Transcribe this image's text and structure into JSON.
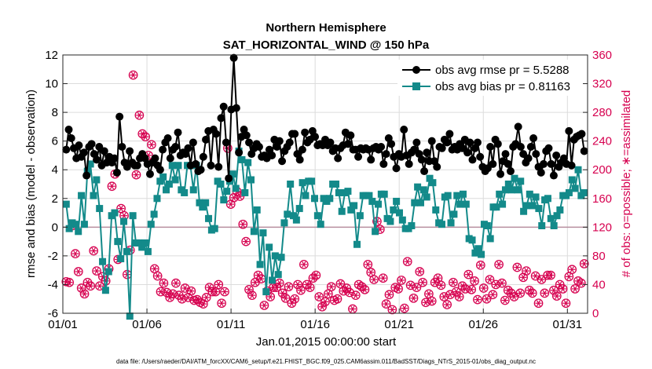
{
  "chart_data": {
    "type": "line",
    "title": "Northern Hemisphere",
    "subtitle": "SAT_HORIZONTAL_WIND @ 150 hPa",
    "xlabel": "Jan.01,2015 00:00:00 start",
    "ylabel": "rmse and bias (model - observation)",
    "ylabel_right": "# of obs: o=possible; ∗=assimilated",
    "footnote": "data file: /Users/raeder/DAI/ATM_forcXX/CAM6_setup/f.e21.FHIST_BGC.f09_025.CAM6assim.011/BadSST/Diags_NTrS_2015-01/obs_diag_output.nc",
    "xlim": [
      1,
      32.2
    ],
    "ylim": [
      -6,
      12
    ],
    "ylim_right": [
      0,
      360
    ],
    "x_ticks": [
      1,
      6,
      11,
      16,
      21,
      26,
      31
    ],
    "x_tick_labels": [
      "01/01",
      "01/06",
      "01/11",
      "01/16",
      "01/21",
      "01/26",
      "01/31"
    ],
    "y_ticks": [
      -6,
      -4,
      -2,
      0,
      2,
      4,
      6,
      8,
      10,
      12
    ],
    "y_tick_labels": [
      "-6",
      "-4",
      "-2",
      "0",
      "2",
      "4",
      "6",
      "8",
      "10",
      "12"
    ],
    "y_ticks_right": [
      0,
      40,
      80,
      120,
      160,
      200,
      240,
      280,
      320,
      360
    ],
    "y_tick_labels_right": [
      "0",
      "40",
      "80",
      "120",
      "160",
      "200",
      "240",
      "280",
      "320",
      "360"
    ],
    "zero_line": 0,
    "legend_position": "top-right",
    "colors": {
      "rmse": "#000000",
      "bias": "#138a8a",
      "obs": "#d6004f",
      "zero": "#b88f9f"
    },
    "series": [
      {
        "name": "obs avg rmse pr = 5.5288",
        "style": "rmse",
        "values": [
          5.4,
          6.8,
          6.2,
          5.5,
          4.8,
          5.7,
          4.9,
          5.2,
          3.6,
          5.6,
          5.8,
          5.1,
          4.7,
          5.6,
          4.3,
          5.3,
          4.5,
          4.9,
          4.5,
          4.8,
          3.8,
          7.7,
          5.6,
          4.5,
          4.2,
          5.3,
          4.5,
          4.3,
          4.3,
          4.8,
          5.1,
          4.8,
          4.4,
          3.7,
          4.5,
          4.8,
          4.3,
          4.0,
          5.4,
          5.9,
          6.2,
          4.8,
          5.4,
          5.6,
          6.6,
          5.0,
          5.2,
          5.1,
          5.5,
          4.3,
          5.9,
          4.4,
          3.9,
          4.0,
          4.9,
          6.1,
          6.7,
          4.3,
          6.8,
          6.5,
          4.2,
          7.6,
          8.4,
          5.9,
          3.4,
          8.2,
          11.8,
          8.3,
          5.2,
          6.3,
          6.8,
          6.4,
          5.9,
          5.1,
          5.5,
          5.8,
          5.6,
          4.9,
          5.0,
          4.8,
          5.4,
          5.0,
          6.1,
          5.6,
          6.0,
          4.6,
          5.3,
          5.6,
          5.9,
          6.5,
          6.5,
          5.1,
          4.7,
          5.4,
          6.6,
          5.9,
          6.1,
          6.7,
          6.3,
          5.7,
          5.8,
          5.7,
          6.1,
          5.7,
          5.9,
          5.3,
          5.5,
          4.8,
          5.5,
          5.7,
          6.6,
          5.8,
          6.4,
          5.4,
          5.4,
          4.9,
          5.5,
          5.4,
          5.5,
          5.4,
          4.7,
          5.5,
          5.6,
          5.4,
          5.6,
          4.4,
          5.1,
          6.2,
          5.8,
          4.9,
          4.1,
          5.1,
          4.9,
          6.8,
          5.0,
          4.4,
          5.2,
          5.4,
          5.9,
          5.1,
          4.7,
          3.9,
          5.2,
          4.6,
          6.0,
          4.6,
          4.2,
          5.6,
          5.5,
          6.1,
          5.9,
          6.5,
          5.4,
          5.6,
          5.4,
          5.8,
          5.5,
          6.1,
          5.2,
          5.9,
          4.7,
          5.5,
          5.9,
          4.9,
          4.2,
          3.9,
          4.1,
          5.6,
          4.4,
          6.1,
          5.8,
          3.7,
          4.6,
          5.1,
          4.4,
          3.9,
          5.6,
          5.8,
          7.0,
          5.6,
          5.1,
          4.5,
          4.8,
          5.6,
          6.2,
          5.1,
          4.2,
          3.8,
          4.4,
          5.3,
          5.5,
          4.4,
          3.6,
          5.0,
          4.2,
          4.5,
          4.8,
          4.4,
          6.7,
          4.3,
          6.1,
          6.3,
          6.4,
          6.5,
          5.3
        ],
        "marker": "filled-circle"
      },
      {
        "name": "obs avg bias pr = 0.81163",
        "style": "bias",
        "values": [
          1.6,
          -0.1,
          0.3,
          0.2,
          -0.3,
          2.2,
          0.2,
          3.9,
          4.4,
          2.2,
          3.3,
          1.3,
          -2.4,
          -4.4,
          -3.1,
          0.8,
          1.0,
          -1.0,
          -2.2,
          0.4,
          -1.7,
          -6.2,
          0.8,
          -1.1,
          -1.1,
          -1.4,
          -1.1,
          -1.7,
          0.2,
          0.9,
          2.0,
          3.2,
          3.5,
          2.6,
          3.0,
          4.3,
          3.3,
          4.3,
          2.6,
          2.4,
          4.3,
          4.3,
          2.6,
          4.3,
          1.7,
          1.4,
          1.7,
          0.6,
          -0.2,
          -0.1,
          3.2,
          3.0,
          1.9,
          2.5,
          3.2,
          3.7,
          2.7,
          5.3,
          4.7,
          2.4,
          4.5,
          3.3,
          -0.3,
          1.2,
          -2.6,
          -0.4,
          -4.5,
          -1.4,
          -3.7,
          -2.0,
          -3.3,
          -2.1,
          0.3,
          0.9,
          3.0,
          0.8,
          0.5,
          1.3,
          3.1,
          2.2,
          3.2,
          3.2,
          2.0,
          0.8,
          0.2,
          2.0,
          1.8,
          2.0,
          3.0,
          3.0,
          2.4,
          1.1,
          2.4,
          2.5,
          1.2,
          1.5,
          -1.2,
          0.8,
          2.2,
          2.2,
          2.2,
          1.8,
          -0.3,
          1.6,
          2.3,
          2.3,
          0.6,
          0.4,
          1.2,
          1.8,
          1.0,
          0.5,
          -0.1,
          -0.1,
          0.1,
          1.7,
          2.8,
          1.7,
          2.6,
          2.1,
          3.4,
          3.1,
          1.2,
          0.3,
          0.2,
          2.1,
          2.2,
          0.3,
          0.9,
          2.2,
          1.6,
          2.3,
          1.6,
          -0.8,
          -0.9,
          -1.8,
          -1.5,
          -1.9,
          0.2,
          0.1,
          -0.8,
          1.4,
          1.4,
          2.3,
          1.6,
          2.6,
          3.0,
          2.6,
          3.4,
          2.6,
          3.2,
          1.1,
          1.5,
          2.3,
          1.5,
          2.1,
          1.3,
          0.1,
          1.9,
          2.0,
          0.6,
          0.1,
          0.8,
          1.2,
          2.2,
          2.2,
          2.4,
          3.3,
          2.7,
          4.0,
          2.2,
          2.4
        ],
        "marker": "filled-square"
      },
      {
        "name": "# of obs possible",
        "style": "obs",
        "axis": "right",
        "values": [
          44,
          43,
          122,
          83,
          58,
          35,
          27,
          43,
          38,
          87,
          59,
          38,
          51,
          45,
          62,
          177,
          194,
          75,
          146,
          136,
          54,
          88,
          332,
          193,
          276,
          250,
          246,
          220,
          235,
          62,
          52,
          30,
          42,
          29,
          22,
          27,
          42,
          25,
          20,
          35,
          22,
          31,
          18,
          19,
          15,
          13,
          22,
          36,
          30,
          30,
          40,
          14,
          30,
          230,
          152,
          161,
          170,
          163,
          124,
          100,
          33,
          25,
          43,
          53,
          48,
          11,
          31,
          23,
          36,
          36,
          42,
          28,
          21,
          37,
          14,
          20,
          40,
          32,
          68,
          40,
          36,
          49,
          53,
          23,
          9,
          16,
          27,
          37,
          18,
          20,
          41,
          31,
          35,
          29,
          6,
          25,
          40,
          37,
          33,
          68,
          57,
          47,
          128,
          117,
          49,
          13,
          26,
          5,
          36,
          34,
          46,
          7,
          72,
          39,
          21,
          36,
          58,
          43,
          15,
          27,
          17,
          43,
          49,
          39,
          23,
          12,
          26,
          43,
          30,
          23,
          38,
          34,
          54,
          33,
          45,
          19,
          67,
          35,
          20,
          47,
          26,
          40,
          68,
          42,
          18,
          32,
          28,
          23,
          64,
          28,
          50,
          59,
          32,
          28,
          52,
          14,
          47,
          28,
          53,
          53,
          32,
          24,
          40,
          34,
          14,
          51,
          61,
          34,
          45,
          42,
          69
        ],
        "marker": "open-circle"
      },
      {
        "name": "# of obs assimilated",
        "style": "obs",
        "axis": "right",
        "values": [
          44,
          43,
          122,
          83,
          58,
          35,
          27,
          43,
          38,
          87,
          59,
          38,
          51,
          45,
          62,
          177,
          194,
          75,
          146,
          136,
          54,
          88,
          332,
          193,
          276,
          250,
          246,
          220,
          235,
          62,
          52,
          30,
          42,
          29,
          22,
          27,
          42,
          25,
          20,
          35,
          22,
          31,
          18,
          19,
          15,
          13,
          22,
          36,
          30,
          30,
          40,
          14,
          30,
          230,
          152,
          161,
          170,
          163,
          124,
          100,
          33,
          25,
          43,
          53,
          48,
          11,
          31,
          23,
          36,
          36,
          42,
          28,
          21,
          37,
          14,
          20,
          40,
          32,
          68,
          40,
          36,
          49,
          53,
          23,
          9,
          16,
          27,
          37,
          18,
          20,
          41,
          31,
          35,
          29,
          6,
          25,
          40,
          37,
          33,
          68,
          57,
          47,
          128,
          117,
          49,
          13,
          26,
          5,
          36,
          34,
          46,
          7,
          72,
          39,
          21,
          36,
          58,
          43,
          15,
          27,
          17,
          43,
          49,
          39,
          23,
          12,
          26,
          43,
          30,
          23,
          38,
          34,
          54,
          33,
          45,
          19,
          67,
          35,
          20,
          47,
          26,
          40,
          68,
          42,
          18,
          32,
          28,
          23,
          64,
          28,
          50,
          59,
          32,
          28,
          52,
          14,
          47,
          28,
          53,
          53,
          32,
          24,
          40,
          34,
          14,
          51,
          61,
          34,
          45,
          42,
          69
        ],
        "marker": "asterisk"
      }
    ]
  }
}
